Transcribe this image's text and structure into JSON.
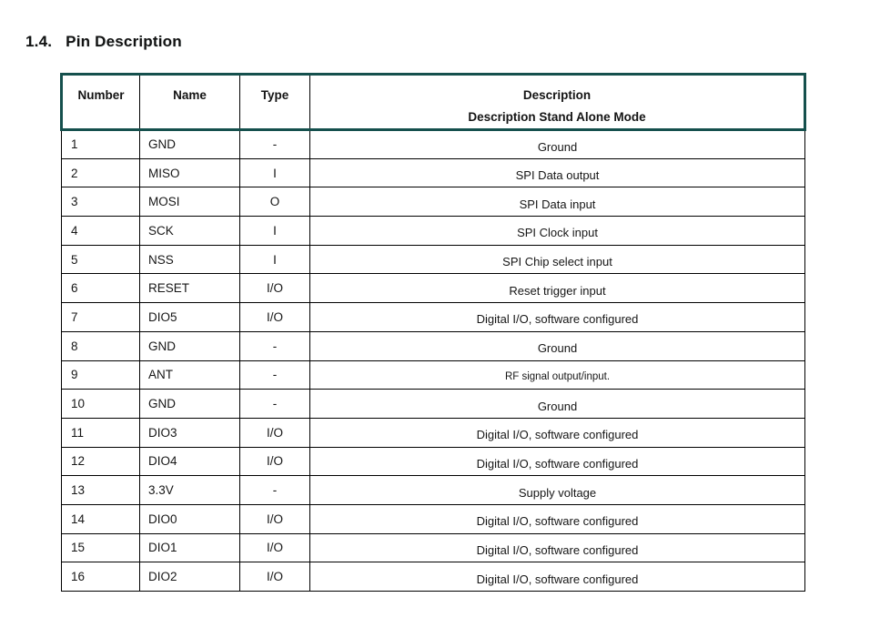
{
  "colors": {
    "table_accent": "#15504d"
  },
  "heading": {
    "number": "1.4.",
    "title": "Pin Description"
  },
  "table": {
    "columns": [
      {
        "key": "number",
        "label": "Number"
      },
      {
        "key": "name",
        "label": "Name"
      },
      {
        "key": "type",
        "label": "Type"
      },
      {
        "key": "description",
        "label": "Description",
        "sublabel": "Description Stand Alone Mode"
      }
    ],
    "rows": [
      {
        "number": "1",
        "name": "GND",
        "type": "-",
        "description": "Ground"
      },
      {
        "number": "2",
        "name": "MISO",
        "type": "I",
        "description": "SPI Data output"
      },
      {
        "number": "3",
        "name": "MOSI",
        "type": "O",
        "description": "SPI Data input"
      },
      {
        "number": "4",
        "name": "SCK",
        "type": "I",
        "description": "SPI Clock input"
      },
      {
        "number": "5",
        "name": "NSS",
        "type": "I",
        "description": "SPI Chip select input"
      },
      {
        "number": "6",
        "name": "RESET",
        "type": "I/O",
        "description": "Reset trigger input"
      },
      {
        "number": "7",
        "name": "DIO5",
        "type": "I/O",
        "description": "Digital I/O, software configured"
      },
      {
        "number": "8",
        "name": "GND",
        "type": "-",
        "description": "Ground"
      },
      {
        "number": "9",
        "name": "ANT",
        "type": "-",
        "description": "RF signal output/input."
      },
      {
        "number": "10",
        "name": "GND",
        "type": "-",
        "description": "Ground"
      },
      {
        "number": "11",
        "name": "DIO3",
        "type": "I/O",
        "description": "Digital I/O, software configured"
      },
      {
        "number": "12",
        "name": "DIO4",
        "type": "I/O",
        "description": "Digital I/O, software configured"
      },
      {
        "number": "13",
        "name": "3.3V",
        "type": "-",
        "description": "Supply voltage"
      },
      {
        "number": "14",
        "name": "DIO0",
        "type": "I/O",
        "description": "Digital I/O, software configured"
      },
      {
        "number": "15",
        "name": "DIO1",
        "type": "I/O",
        "description": "Digital I/O, software configured"
      },
      {
        "number": "16",
        "name": "DIO2",
        "type": "I/O",
        "description": "Digital I/O, software configured"
      }
    ]
  }
}
